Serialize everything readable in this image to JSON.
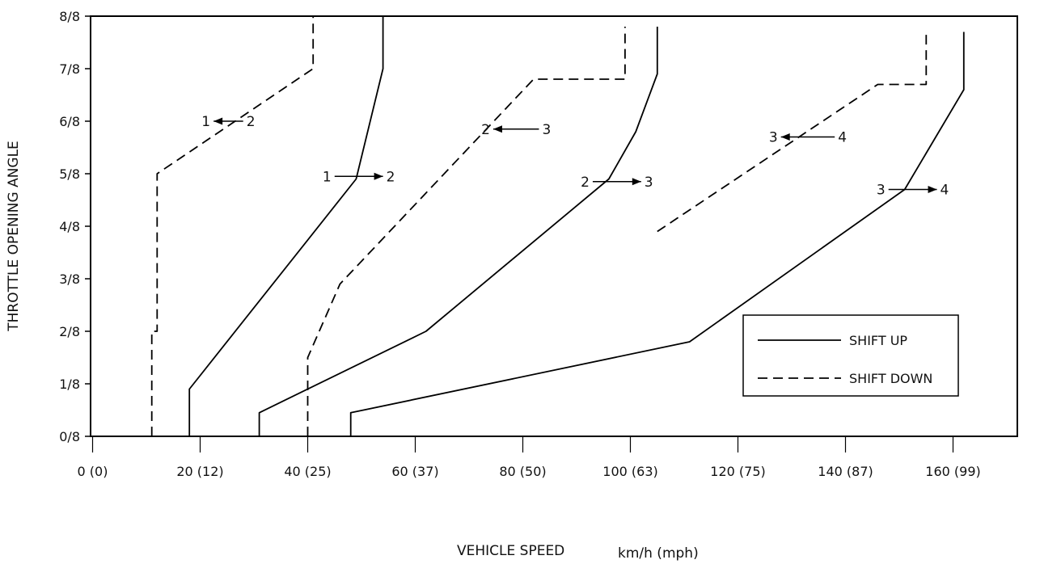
{
  "chart_data": {
    "type": "line",
    "xlabel": "VEHICLE SPEED",
    "xunit": "km/h (mph)",
    "ylabel": "THROTTLE OPENING ANGLE",
    "xlim": [
      0,
      170
    ],
    "ylim": [
      0,
      8
    ],
    "x_ticks": [
      {
        "value": 0,
        "label": "0 (0)"
      },
      {
        "value": 20,
        "label": "20 (12)"
      },
      {
        "value": 40,
        "label": "40 (25)"
      },
      {
        "value": 60,
        "label": "60 (37)"
      },
      {
        "value": 80,
        "label": "80 (50)"
      },
      {
        "value": 100,
        "label": "100 (63)"
      },
      {
        "value": 120,
        "label": "120 (75)"
      },
      {
        "value": 140,
        "label": "140 (87)"
      },
      {
        "value": 160,
        "label": "160 (99)"
      }
    ],
    "y_ticks": [
      {
        "value": 0,
        "label": "0/8"
      },
      {
        "value": 1,
        "label": "1/8"
      },
      {
        "value": 2,
        "label": "2/8"
      },
      {
        "value": 3,
        "label": "3/8"
      },
      {
        "value": 4,
        "label": "4/8"
      },
      {
        "value": 5,
        "label": "5/8"
      },
      {
        "value": 6,
        "label": "6/8"
      },
      {
        "value": 7,
        "label": "7/8"
      },
      {
        "value": 8,
        "label": "8/8"
      }
    ],
    "legend": {
      "position": "bottom-right",
      "entries": [
        {
          "label": "SHIFT UP",
          "style": "solid"
        },
        {
          "label": "SHIFT DOWN",
          "style": "dashed"
        }
      ]
    },
    "series": [
      {
        "style": "solid",
        "points": [
          [
            18,
            0
          ],
          [
            18,
            0.9
          ],
          [
            49,
            4.9
          ],
          [
            54,
            7
          ],
          [
            54,
            8
          ]
        ]
      },
      {
        "style": "dashed",
        "points": [
          [
            11,
            0
          ],
          [
            11,
            2
          ],
          [
            12,
            2
          ],
          [
            12,
            5
          ],
          [
            41,
            7
          ],
          [
            41,
            8
          ]
        ]
      },
      {
        "style": "solid",
        "points": [
          [
            31,
            0
          ],
          [
            31,
            0.45
          ],
          [
            62,
            2
          ],
          [
            96,
            4.9
          ],
          [
            101,
            5.8
          ],
          [
            105,
            6.9
          ],
          [
            105,
            7.8
          ]
        ]
      },
      {
        "style": "dashed",
        "points": [
          [
            40,
            0
          ],
          [
            40,
            1.5
          ],
          [
            46,
            2.9
          ],
          [
            82,
            6.8
          ],
          [
            99,
            6.8
          ],
          [
            99,
            7.8
          ]
        ]
      },
      {
        "style": "solid",
        "points": [
          [
            48,
            0
          ],
          [
            48,
            0.45
          ],
          [
            111,
            1.8
          ],
          [
            151,
            4.7
          ],
          [
            162,
            6.6
          ],
          [
            162,
            7.7
          ]
        ]
      },
      {
        "style": "dashed",
        "points": [
          [
            105,
            3.9
          ],
          [
            146,
            6.7
          ],
          [
            155,
            6.7
          ],
          [
            155,
            7.7
          ]
        ]
      }
    ],
    "annotations": [
      {
        "from": "2",
        "to": "1",
        "direction": "left",
        "x": [
          22.5,
          28
        ],
        "y": 6
      },
      {
        "from": "1",
        "to": "2",
        "direction": "right",
        "x": [
          45,
          54
        ],
        "y": 4.95
      },
      {
        "from": "3",
        "to": "2",
        "direction": "left",
        "x": [
          74.5,
          83
        ],
        "y": 5.85
      },
      {
        "from": "2",
        "to": "3",
        "direction": "right",
        "x": [
          93,
          102
        ],
        "y": 4.85
      },
      {
        "from": "4",
        "to": "3",
        "direction": "left",
        "x": [
          128,
          138
        ],
        "y": 5.7
      },
      {
        "from": "3",
        "to": "4",
        "direction": "right",
        "x": [
          148,
          157
        ],
        "y": 4.7
      }
    ]
  }
}
